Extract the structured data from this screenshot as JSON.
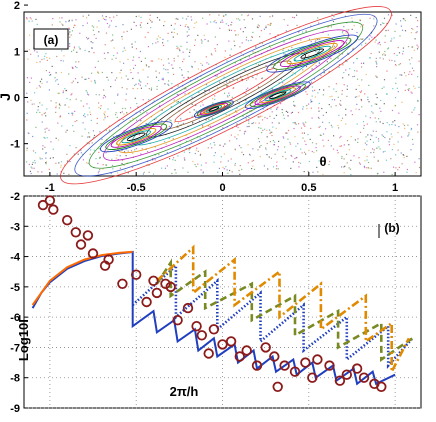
{
  "chart_data": [
    {
      "type": "scatter",
      "panel_label": "(a)",
      "xlabel": "θ",
      "ylabel": "J",
      "xlim": [
        -1.15,
        1.15
      ],
      "ylim": [
        -1.7,
        1.85
      ],
      "xticks": [
        "-1",
        "-0.5",
        "0",
        "0.5",
        "1"
      ],
      "yticks": [
        "2",
        "1",
        "0",
        "-1"
      ],
      "ytick_values": [
        2,
        1,
        0,
        -1
      ],
      "xtick_values": [
        -1,
        -0.5,
        0,
        0.5,
        1
      ],
      "islands": [
        {
          "cx": -0.5,
          "cy": -0.85,
          "rx": 0.22,
          "ry": 0.32
        },
        {
          "cx": 0.52,
          "cy": 0.95,
          "rx": 0.28,
          "ry": 0.35
        },
        {
          "cx": 0.32,
          "cy": 0.05,
          "rx": 0.2,
          "ry": 0.25
        },
        {
          "cx": -0.05,
          "cy": -0.25,
          "rx": 0.12,
          "ry": 0.18
        }
      ],
      "colors": [
        "#e41a1c",
        "#1f3fbf",
        "#1a8a1a",
        "#b000b0",
        "#e08a00",
        "#00a0a0",
        "#000000",
        "#7b4a1a"
      ]
    },
    {
      "type": "line",
      "panel_label": "(b)",
      "ylabel": "Log10Γ",
      "xlabel": "2π/h",
      "xlim": [
        -1.15,
        1.15
      ],
      "ylim": [
        -9,
        -2
      ],
      "yticks": [
        "-2",
        "-3",
        "-4",
        "-5",
        "-6",
        "-7",
        "-8",
        "-9"
      ],
      "ytick_values": [
        -2,
        -3,
        -4,
        -5,
        -6,
        -7,
        -8,
        -9
      ],
      "series": [
        {
          "style": "solid",
          "color": "#1f3fbf",
          "x": [
            -1.1,
            -1.05,
            -1.0,
            -0.9,
            -0.8,
            -0.7,
            -0.6,
            -0.52,
            -0.52,
            -0.4,
            -0.38,
            -0.28,
            -0.26,
            -0.16,
            -0.14,
            -0.05,
            -0.03,
            0.07,
            0.09,
            0.18,
            0.2,
            0.29,
            0.31,
            0.41,
            0.43,
            0.52,
            0.54,
            0.64,
            0.66,
            0.76,
            0.78,
            0.87,
            0.89,
            1.0
          ],
          "y": [
            -5.7,
            -5.2,
            -4.85,
            -4.4,
            -4.15,
            -3.98,
            -3.9,
            -3.85,
            -6.3,
            -5.8,
            -6.5,
            -6.1,
            -6.8,
            -6.4,
            -7.1,
            -6.7,
            -7.3,
            -6.9,
            -7.5,
            -7.1,
            -7.7,
            -7.3,
            -7.8,
            -7.4,
            -7.9,
            -7.5,
            -8.0,
            -7.6,
            -8.1,
            -7.7,
            -8.2,
            -7.8,
            -8.2,
            -7.9
          ]
        },
        {
          "style": "dotted",
          "color": "#1f3fbf",
          "x": [
            -0.52,
            -0.27,
            -0.27,
            -0.03,
            -0.03,
            0.22,
            0.22,
            0.47,
            0.47,
            0.72,
            0.72,
            0.96,
            0.96,
            1.1
          ],
          "y": [
            -5.6,
            -4.3,
            -6.0,
            -4.8,
            -6.4,
            -5.2,
            -6.8,
            -5.6,
            -7.1,
            -6.0,
            -7.4,
            -6.3,
            -7.6,
            -6.7
          ]
        },
        {
          "style": "dashed",
          "color": "#7a8a22",
          "x": [
            -0.38,
            -0.3,
            -0.3,
            -0.1,
            -0.1,
            0.17,
            0.17,
            0.42,
            0.42,
            0.67,
            0.67,
            0.92,
            0.92,
            1.1
          ],
          "y": [
            -4.9,
            -4.2,
            -5.3,
            -4.5,
            -5.7,
            -4.9,
            -6.1,
            -5.3,
            -6.6,
            -5.8,
            -7.0,
            -6.2,
            -7.4,
            -6.7
          ]
        },
        {
          "style": "dashdot",
          "color": "#e08a00",
          "x": [
            -0.38,
            -0.17,
            -0.17,
            0.07,
            0.07,
            0.33,
            0.33,
            0.57,
            0.57,
            0.83,
            0.83,
            0.98,
            0.98,
            1.08
          ],
          "y": [
            -4.8,
            -3.7,
            -5.2,
            -4.1,
            -5.6,
            -4.5,
            -6.0,
            -4.9,
            -6.4,
            -5.3,
            -6.8,
            -6.2,
            -7.8,
            -6.7
          ]
        },
        {
          "style": "solid",
          "color": "#ff6a00",
          "x": [
            -1.1,
            -1.0,
            -0.9,
            -0.8,
            -0.7,
            -0.6,
            -0.52
          ],
          "y": [
            -5.6,
            -4.8,
            -4.35,
            -4.1,
            -3.95,
            -3.88,
            -3.84
          ]
        }
      ],
      "points": {
        "color": "#8b1a1a",
        "x": [
          -1.04,
          -1.0,
          -0.98,
          -0.9,
          -0.85,
          -0.82,
          -0.78,
          -0.75,
          -0.68,
          -0.66,
          -0.58,
          -0.5,
          -0.44,
          -0.4,
          -0.38,
          -0.33,
          -0.3,
          -0.26,
          -0.2,
          -0.15,
          -0.12,
          -0.08,
          -0.05,
          0.0,
          0.05,
          0.1,
          0.14,
          0.2,
          0.25,
          0.3,
          0.32,
          0.36,
          0.42,
          0.48,
          0.52,
          0.55,
          0.62,
          0.68,
          0.72,
          0.78,
          0.82,
          0.88,
          0.92
        ],
        "y": [
          -2.3,
          -2.15,
          -2.45,
          -2.8,
          -3.2,
          -3.6,
          -3.3,
          -3.9,
          -4.3,
          -4.1,
          -4.9,
          -4.6,
          -5.5,
          -4.8,
          -5.2,
          -4.9,
          -5.0,
          -6.1,
          -5.7,
          -6.3,
          -6.6,
          -7.2,
          -6.4,
          -6.9,
          -6.8,
          -7.3,
          -7.1,
          -7.6,
          -7.0,
          -7.3,
          -8.3,
          -7.6,
          -7.8,
          -7.5,
          -8.0,
          -7.4,
          -7.6,
          -8.1,
          -7.9,
          -7.7,
          -8.0,
          -8.2,
          -8.3
        ]
      }
    }
  ]
}
